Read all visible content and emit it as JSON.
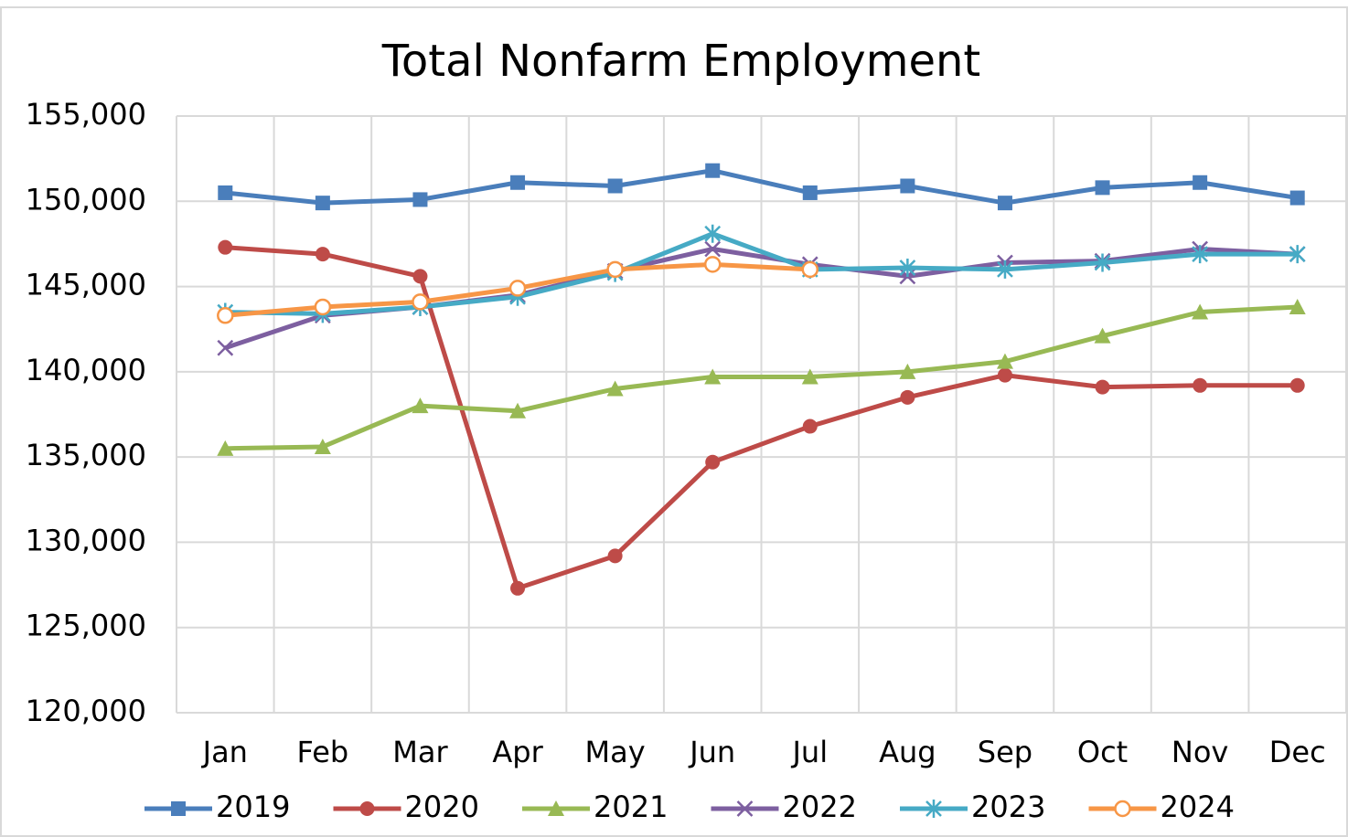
{
  "chart_data": {
    "type": "line",
    "title": "Total Nonfarm Employment",
    "categories": [
      "Jan",
      "Feb",
      "Mar",
      "Apr",
      "May",
      "Jun",
      "Jul",
      "Aug",
      "Sep",
      "Oct",
      "Nov",
      "Dec"
    ],
    "series": [
      {
        "name": "2019",
        "color": "#4a7ebb",
        "marker": "square",
        "values": [
          150500,
          149900,
          150100,
          151100,
          150900,
          151800,
          150500,
          150900,
          149900,
          150800,
          151100,
          150200
        ]
      },
      {
        "name": "2020",
        "color": "#be4b48",
        "marker": "circle",
        "values": [
          147300,
          146900,
          145600,
          127300,
          129200,
          134700,
          136800,
          138500,
          139800,
          139100,
          139200,
          139200
        ]
      },
      {
        "name": "2021",
        "color": "#98b954",
        "marker": "triangle",
        "values": [
          135500,
          135600,
          138000,
          137700,
          139000,
          139700,
          139700,
          140000,
          140600,
          142100,
          143500,
          143800
        ]
      },
      {
        "name": "2022",
        "color": "#7d5fa0",
        "marker": "x",
        "values": [
          141400,
          143300,
          143800,
          144500,
          145900,
          147200,
          146300,
          145600,
          146400,
          146500,
          147200,
          146900
        ]
      },
      {
        "name": "2023",
        "color": "#46aac5",
        "marker": "asterisk",
        "values": [
          143500,
          143400,
          143800,
          144400,
          145800,
          148100,
          146000,
          146100,
          146000,
          146400,
          146900,
          146900
        ]
      },
      {
        "name": "2024",
        "color": "#f79646",
        "marker": "open-circle",
        "values": [
          143300,
          143800,
          144100,
          144900,
          146000,
          146300,
          146000,
          null,
          null,
          null,
          null,
          null
        ]
      }
    ],
    "ylim": [
      120000,
      155000
    ],
    "yticks": [
      {
        "value": 120000,
        "label": "120,000"
      },
      {
        "value": 125000,
        "label": "125,000"
      },
      {
        "value": 130000,
        "label": "130,000"
      },
      {
        "value": 135000,
        "label": "135,000"
      },
      {
        "value": 140000,
        "label": "140,000"
      },
      {
        "value": 145000,
        "label": "145,000"
      },
      {
        "value": 150000,
        "label": "150,000"
      },
      {
        "value": 155000,
        "label": "155,000"
      }
    ],
    "grid": true,
    "legend": "bottom"
  }
}
